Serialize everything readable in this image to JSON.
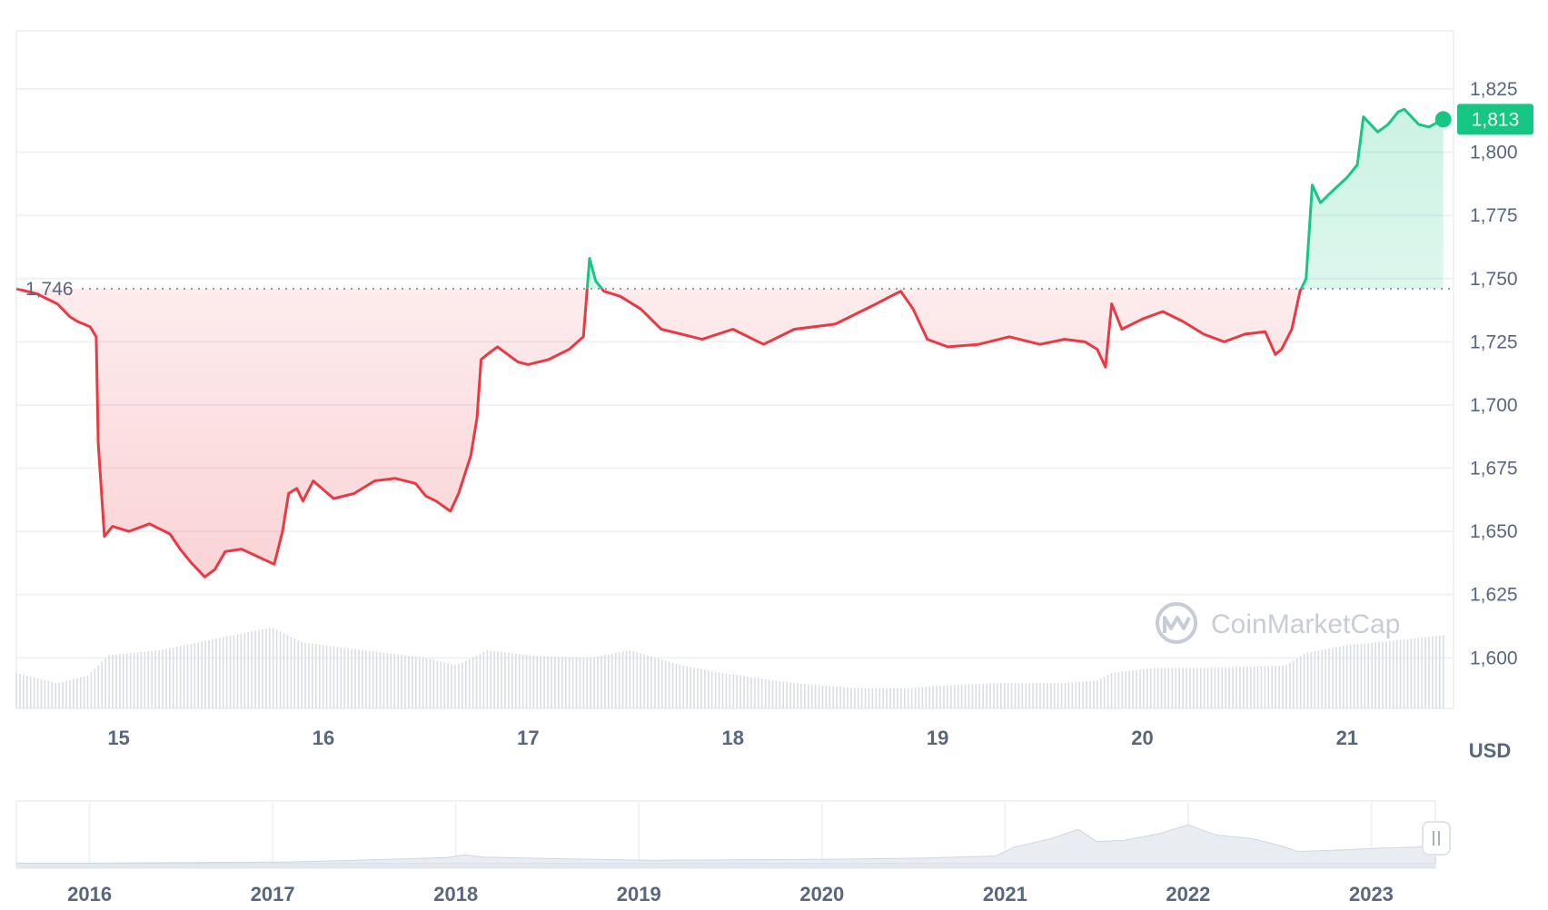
{
  "chart_data": {
    "type": "area",
    "currency_unit": "USD",
    "watermark": "CoinMarketCap",
    "open_price": 1746,
    "open_price_label": "1,746",
    "last_price": 1813,
    "last_price_label": "1,813",
    "up_color": "#16c784",
    "down_color": "#ea3943",
    "ylim": [
      1580,
      1848
    ],
    "y_ticks": [
      1600,
      1625,
      1650,
      1675,
      1700,
      1725,
      1750,
      1775,
      1800,
      1825
    ],
    "y_tick_labels": [
      "1,600",
      "1,625",
      "1,650",
      "1,675",
      "1,700",
      "1,725",
      "1,750",
      "1,775",
      "1,800",
      "1,825"
    ],
    "xlim": [
      14.5,
      21.52
    ],
    "x_ticks": [
      15,
      16,
      17,
      18,
      19,
      20,
      21
    ],
    "x_tick_labels": [
      "15",
      "16",
      "17",
      "18",
      "19",
      "20",
      "21"
    ],
    "price_series": {
      "x": [
        14.5,
        14.6,
        14.7,
        14.76,
        14.8,
        14.86,
        14.89,
        14.9,
        14.93,
        14.97,
        15.05,
        15.15,
        15.25,
        15.3,
        15.35,
        15.42,
        15.47,
        15.52,
        15.6,
        15.68,
        15.76,
        15.8,
        15.83,
        15.87,
        15.9,
        15.95,
        16.05,
        16.15,
        16.25,
        16.35,
        16.45,
        16.5,
        16.55,
        16.62,
        16.66,
        16.72,
        16.75,
        16.77,
        16.8,
        16.85,
        16.9,
        16.95,
        17.0,
        17.1,
        17.2,
        17.27,
        17.3,
        17.33,
        17.37,
        17.45,
        17.55,
        17.65,
        17.75,
        17.85,
        18.0,
        18.15,
        18.3,
        18.5,
        18.7,
        18.77,
        18.82,
        18.88,
        18.95,
        19.05,
        19.2,
        19.35,
        19.5,
        19.62,
        19.72,
        19.78,
        19.82,
        19.85,
        19.9,
        20.0,
        20.1,
        20.2,
        20.3,
        20.4,
        20.5,
        20.6,
        20.65,
        20.68,
        20.73,
        20.77,
        20.8,
        20.83,
        20.87,
        20.92,
        21.0,
        21.05,
        21.08,
        21.15,
        21.2,
        21.25,
        21.28,
        21.35,
        21.4,
        21.47
      ],
      "y": [
        1746,
        1744,
        1740,
        1735,
        1733,
        1731,
        1727,
        1685,
        1648,
        1652,
        1650,
        1653,
        1649,
        1643,
        1638,
        1632,
        1635,
        1642,
        1643,
        1640,
        1637,
        1650,
        1665,
        1667,
        1662,
        1670,
        1663,
        1665,
        1670,
        1671,
        1669,
        1664,
        1662,
        1658,
        1665,
        1680,
        1695,
        1718,
        1720,
        1723,
        1720,
        1717,
        1716,
        1718,
        1722,
        1727,
        1758,
        1749,
        1745,
        1743,
        1738,
        1730,
        1728,
        1726,
        1730,
        1724,
        1730,
        1732,
        1740,
        1743,
        1745,
        1738,
        1726,
        1723,
        1724,
        1727,
        1724,
        1726,
        1725,
        1722,
        1715,
        1740,
        1730,
        1734,
        1737,
        1733,
        1728,
        1725,
        1728,
        1729,
        1720,
        1722,
        1730,
        1745,
        1750,
        1787,
        1780,
        1784,
        1790,
        1795,
        1814,
        1808,
        1811,
        1816,
        1817,
        1811,
        1810,
        1813
      ]
    },
    "volume_series": {
      "x": [
        14.5,
        14.6,
        14.7,
        14.85,
        14.95,
        15.2,
        15.5,
        15.75,
        15.9,
        16.2,
        16.5,
        16.65,
        16.8,
        17.0,
        17.3,
        17.5,
        17.75,
        17.95,
        18.3,
        18.6,
        18.85,
        19.0,
        19.3,
        19.6,
        19.78,
        19.85,
        20.05,
        20.3,
        20.7,
        20.8,
        21.0,
        21.25,
        21.47
      ],
      "y": [
        1594,
        1592,
        1590,
        1593,
        1601,
        1603,
        1608,
        1612,
        1606,
        1603,
        1600,
        1597,
        1603,
        1601,
        1600,
        1603,
        1597,
        1594,
        1590,
        1588,
        1588,
        1589,
        1590,
        1590,
        1591,
        1594,
        1596,
        1596,
        1597,
        1602,
        1605,
        1607,
        1609
      ]
    },
    "navigator": {
      "x_tick_labels": [
        "2016",
        "2017",
        "2018",
        "2019",
        "2020",
        "2021",
        "2022",
        "2023"
      ],
      "x_ticks": [
        2015.95,
        2016.95,
        2017.95,
        2018.95,
        2019.95,
        2020.95,
        2021.95,
        2022.95
      ],
      "xlim": [
        2015.55,
        2023.3
      ],
      "history": {
        "x": [
          2015.55,
          2016.0,
          2016.5,
          2017.0,
          2017.4,
          2017.9,
          2018.0,
          2018.1,
          2018.5,
          2019.0,
          2019.5,
          2020.0,
          2020.5,
          2020.9,
          2021.0,
          2021.2,
          2021.35,
          2021.45,
          2021.6,
          2021.8,
          2021.95,
          2022.1,
          2022.3,
          2022.45,
          2022.55,
          2022.8,
          2023.0,
          2023.2,
          2023.3
        ],
        "y": [
          0.01,
          0.01,
          0.02,
          0.03,
          0.06,
          0.11,
          0.16,
          0.12,
          0.09,
          0.06,
          0.07,
          0.08,
          0.1,
          0.14,
          0.3,
          0.45,
          0.62,
          0.4,
          0.42,
          0.55,
          0.7,
          0.52,
          0.45,
          0.33,
          0.22,
          0.25,
          0.28,
          0.3,
          0.36
        ]
      }
    }
  }
}
